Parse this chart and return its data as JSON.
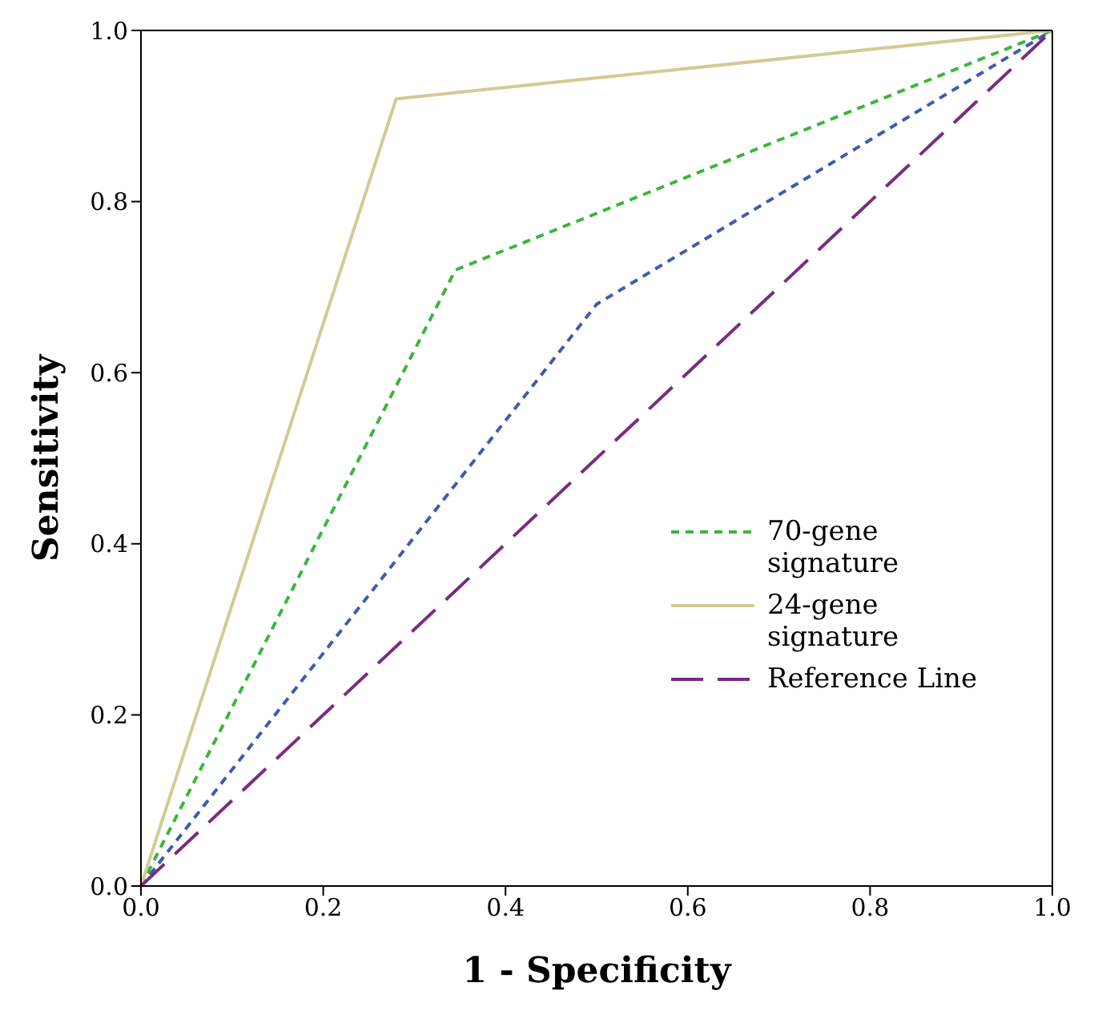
{
  "chart_data": {
    "type": "line",
    "xlabel": "1 - Specificity",
    "ylabel": "Sensitivity",
    "xlim": [
      0,
      1
    ],
    "ylim": [
      0,
      1
    ],
    "xticks": [
      {
        "value": 0,
        "label": "0.0"
      },
      {
        "value": 0.2,
        "label": "0.2"
      },
      {
        "value": 0.4,
        "label": "0.4"
      },
      {
        "value": 0.6,
        "label": "0.6"
      },
      {
        "value": 0.8,
        "label": "0.8"
      },
      {
        "value": 1,
        "label": "1.0"
      }
    ],
    "yticks": [
      {
        "value": 0,
        "label": "0.0"
      },
      {
        "value": 0.2,
        "label": "0.2"
      },
      {
        "value": 0.4,
        "label": "0.4"
      },
      {
        "value": 0.6,
        "label": "0.6"
      },
      {
        "value": 0.8,
        "label": "0.8"
      },
      {
        "value": 1,
        "label": "1.0"
      }
    ],
    "grid": false,
    "legend": "bottom right",
    "marker": "none",
    "series": [
      {
        "color": "#3f5ab0",
        "line_style": "dotted",
        "x": [
          0,
          0.5,
          1
        ],
        "values": [
          0,
          0.68,
          1
        ]
      },
      {
        "name": "70-gene signature",
        "color": "#3cb53c",
        "line_style": "dotted",
        "x": [
          0,
          0.345,
          1
        ],
        "values": [
          0,
          0.72,
          1
        ]
      },
      {
        "name": "24-gene signature",
        "color": "#d2cb94",
        "line_style": "solid",
        "x": [
          0,
          0.28,
          1
        ],
        "values": [
          0,
          0.92,
          1
        ]
      },
      {
        "name": "Reference Line",
        "color": "#7b2b82",
        "line_style": "dashed",
        "x": [
          0,
          1
        ],
        "values": [
          0,
          1
        ]
      }
    ]
  }
}
